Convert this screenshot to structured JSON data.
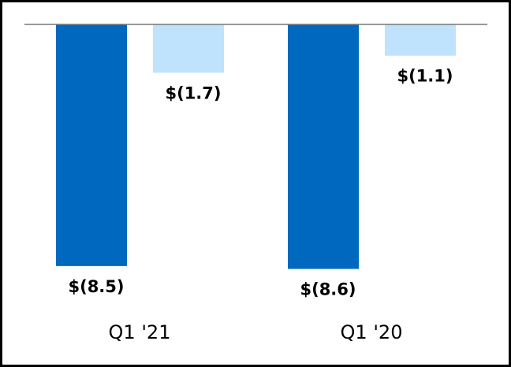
{
  "chart_data": {
    "type": "bar",
    "categories": [
      "Q1 '21",
      "Q1 '20"
    ],
    "series": [
      {
        "color": "#0068be",
        "values": [
          -8.5,
          -8.6
        ],
        "value_labels": [
          "$(8.5)",
          "$(8.6)"
        ]
      },
      {
        "color": "#bfe2fd",
        "values": [
          -1.7,
          -1.1
        ],
        "value_labels": [
          "$(1.7)",
          "$(1.1)"
        ]
      }
    ]
  }
}
